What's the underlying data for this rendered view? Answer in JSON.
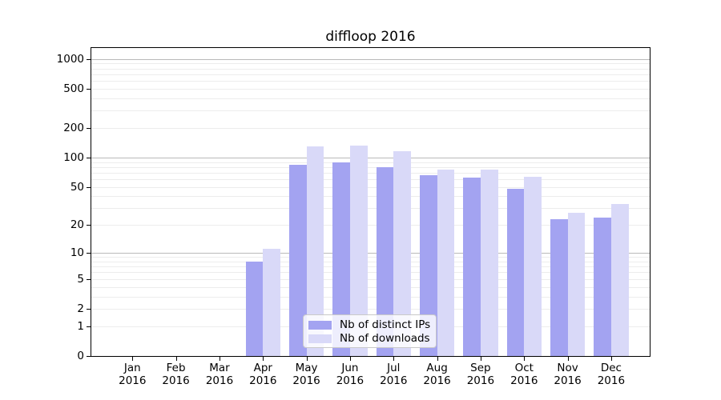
{
  "title": "diffloop 2016",
  "chart_data": {
    "type": "bar",
    "title": "diffloop 2016",
    "categories": [
      "Jan",
      "Feb",
      "Mar",
      "Apr",
      "May",
      "Jun",
      "Jul",
      "Aug",
      "Sep",
      "Oct",
      "Nov",
      "Dec"
    ],
    "category_year": "2016",
    "series": [
      {
        "name": "Nb of distinct IPs",
        "color": "#a3a3f1",
        "values": [
          0,
          0,
          0,
          8,
          84,
          90,
          79,
          66,
          62,
          48,
          23,
          24
        ]
      },
      {
        "name": "Nb of downloads",
        "color": "#d9d9f8",
        "values": [
          0,
          0,
          0,
          11,
          130,
          133,
          115,
          76,
          75,
          64,
          27,
          33
        ]
      }
    ],
    "yscale": "log1p",
    "y_ticks": [
      0,
      1,
      2,
      5,
      10,
      20,
      50,
      100,
      200,
      500,
      1000
    ],
    "ylim": [
      0,
      1300
    ],
    "grid": true,
    "legend_position": "lower center",
    "colors": {
      "bar_dark": "#a3a3f1",
      "bar_light": "#d9d9f8",
      "grid_major": "#b9b9b9",
      "grid_minor": "#ececec",
      "axis": "#000000",
      "background": "#ffffff"
    }
  }
}
